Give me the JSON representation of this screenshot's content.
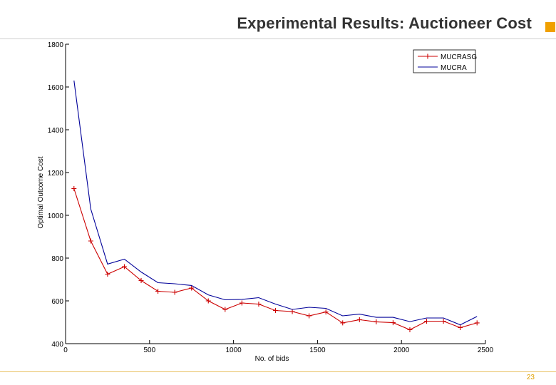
{
  "slide": {
    "title": "Experimental Results: Auctioneer Cost",
    "page_number": "23",
    "accent_color": "#f0a000"
  },
  "chart_data": {
    "type": "line",
    "title": "",
    "xlabel": "No. of bids",
    "ylabel": "Optimal Outcome Cost",
    "xlim": [
      0,
      2500
    ],
    "ylim": [
      400,
      1800
    ],
    "xticks": [
      0,
      500,
      1000,
      1500,
      2000,
      2500
    ],
    "yticks": [
      400,
      600,
      800,
      1000,
      1200,
      1400,
      1600,
      1800
    ],
    "grid": false,
    "legend_position": "top-right",
    "series": [
      {
        "name": "MUCRASG",
        "color": "#cc0000",
        "marker": "+",
        "points": [
          [
            50,
            1125
          ],
          [
            150,
            880
          ],
          [
            250,
            725
          ],
          [
            350,
            760
          ],
          [
            450,
            695
          ],
          [
            550,
            645
          ],
          [
            650,
            640
          ],
          [
            750,
            660
          ],
          [
            850,
            600
          ],
          [
            950,
            560
          ],
          [
            1050,
            590
          ],
          [
            1150,
            585
          ],
          [
            1250,
            555
          ],
          [
            1350,
            550
          ],
          [
            1450,
            530
          ],
          [
            1550,
            548
          ],
          [
            1650,
            497
          ],
          [
            1750,
            512
          ],
          [
            1850,
            502
          ],
          [
            1950,
            498
          ],
          [
            2050,
            465
          ],
          [
            2150,
            505
          ],
          [
            2250,
            505
          ],
          [
            2350,
            475
          ],
          [
            2450,
            497
          ]
        ]
      },
      {
        "name": "MUCRA",
        "color": "#000099",
        "marker": "",
        "points": [
          [
            50,
            1630
          ],
          [
            150,
            1030
          ],
          [
            250,
            772
          ],
          [
            350,
            795
          ],
          [
            450,
            735
          ],
          [
            550,
            685
          ],
          [
            650,
            680
          ],
          [
            750,
            672
          ],
          [
            850,
            628
          ],
          [
            950,
            605
          ],
          [
            1050,
            607
          ],
          [
            1150,
            615
          ],
          [
            1250,
            585
          ],
          [
            1350,
            560
          ],
          [
            1450,
            570
          ],
          [
            1550,
            565
          ],
          [
            1650,
            530
          ],
          [
            1750,
            538
          ],
          [
            1850,
            523
          ],
          [
            1950,
            523
          ],
          [
            2050,
            503
          ],
          [
            2150,
            520
          ],
          [
            2250,
            520
          ],
          [
            2350,
            488
          ],
          [
            2450,
            527
          ]
        ]
      }
    ]
  }
}
